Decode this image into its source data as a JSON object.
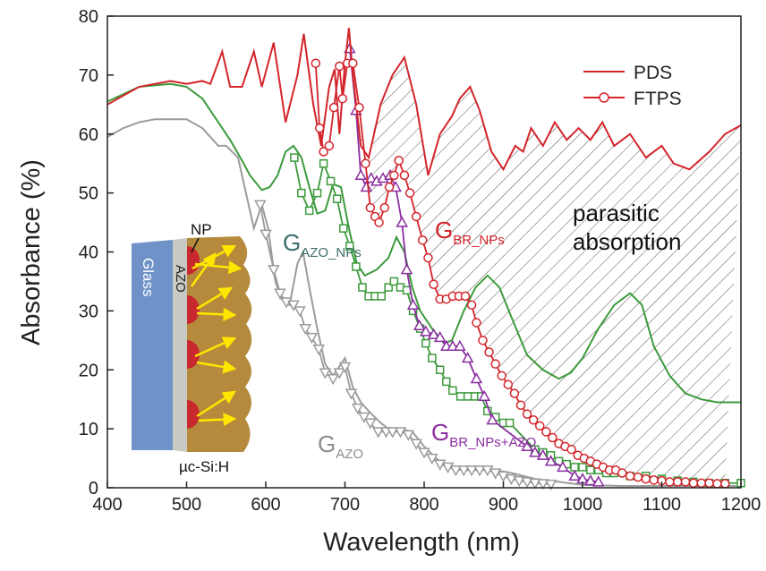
{
  "chart_data": {
    "type": "line",
    "xlabel": "Wavelength (nm)",
    "ylabel": "Absorbance (%)",
    "xlim": [
      400,
      1200
    ],
    "ylim": [
      0,
      80
    ],
    "xticks": [
      400,
      500,
      600,
      700,
      800,
      900,
      1000,
      1100,
      1200
    ],
    "yticks": [
      0,
      10,
      20,
      30,
      40,
      50,
      60,
      70,
      80
    ],
    "legend": {
      "position": "upper right",
      "color": "#d3242a",
      "entries": [
        {
          "name": "PDS",
          "style": "line"
        },
        {
          "name": "FTPS",
          "style": "circle"
        }
      ]
    },
    "annotation": [
      "parasitic",
      "absorption"
    ],
    "series": [
      {
        "label": {
          "text": "G",
          "sub": "AZO"
        },
        "color": "#9b9b9b",
        "label_color": "#8c8c8c",
        "pds": {
          "x": [
            400,
            420,
            440,
            460,
            480,
            500,
            520,
            540,
            550,
            565,
            575,
            585,
            595,
            603,
            612,
            620,
            630,
            640,
            647,
            655,
            665,
            675,
            685,
            695,
            700,
            710,
            720,
            730,
            745,
            760,
            775,
            785,
            800,
            815,
            830,
            850,
            870,
            890,
            910,
            940,
            970,
            1000,
            1050,
            1100,
            1200
          ],
          "values": [
            59.5,
            61,
            62,
            62.5,
            62.5,
            62.5,
            61,
            58,
            58,
            56,
            50,
            44,
            48,
            44,
            35,
            32,
            31,
            38,
            40,
            34,
            27,
            21,
            19,
            21,
            22,
            17,
            14.5,
            13,
            11,
            9.5,
            9.8,
            9.5,
            7,
            5,
            3.5,
            3,
            3,
            3,
            2.5,
            1.5,
            1,
            0.5,
            0.3,
            0.3,
            0.3
          ]
        },
        "ftps": {
          "marker": "triangle-down",
          "x": [
            593,
            600,
            610,
            618,
            626,
            635,
            643,
            650,
            658,
            667,
            675,
            685,
            693,
            700,
            708,
            716,
            724,
            732,
            742,
            752,
            760,
            770,
            780,
            790,
            800,
            810,
            820,
            830,
            840,
            850,
            860,
            870,
            880,
            890,
            900,
            910,
            920,
            930,
            940,
            950,
            960
          ],
          "values": [
            48,
            43,
            37,
            33,
            31.5,
            31,
            30,
            27,
            25.5,
            23.5,
            19.5,
            18.5,
            19.5,
            20.5,
            16,
            13.5,
            12,
            11,
            9.5,
            9.5,
            9.5,
            9.5,
            9,
            7.5,
            6,
            5,
            4,
            3.5,
            3,
            3,
            3,
            3,
            3,
            2.5,
            2,
            1.5,
            1.2,
            1,
            0.8,
            0.7,
            0.6
          ]
        }
      },
      {
        "label": {
          "text": "G",
          "sub": "AZO_NPs"
        },
        "color": "#3c9a3c",
        "label_color": "#3d6e6a",
        "pds": {
          "x": [
            400,
            440,
            480,
            500,
            520,
            540,
            555,
            570,
            580,
            595,
            605,
            615,
            625,
            635,
            645,
            655,
            665,
            675,
            685,
            695,
            705,
            715,
            725,
            740,
            755,
            765,
            775,
            785,
            795,
            810,
            825,
            835,
            850,
            865,
            880,
            895,
            910,
            930,
            950,
            970,
            985,
            1000,
            1020,
            1040,
            1060,
            1075,
            1090,
            1110,
            1130,
            1150,
            1170,
            1200
          ],
          "values": [
            65.5,
            68,
            68.5,
            68,
            66,
            62,
            59,
            55.5,
            53,
            50.5,
            51,
            53,
            57,
            58,
            56,
            51,
            46.5,
            47,
            51.5,
            51,
            44,
            38,
            36,
            37,
            39,
            42.5,
            40,
            34,
            30,
            27,
            24.5,
            25,
            30,
            34,
            36,
            34,
            29,
            22.5,
            20,
            18.5,
            19.5,
            22,
            27,
            31,
            33,
            31,
            24,
            19,
            16,
            15,
            14.5,
            14.5
          ]
        },
        "ftps": {
          "marker": "square",
          "x": [
            636,
            645,
            655,
            665,
            673,
            682,
            690,
            698,
            706,
            714,
            722,
            730,
            738,
            746,
            755,
            762,
            770,
            778,
            786,
            795,
            802,
            810,
            820,
            828,
            836,
            846,
            855,
            864,
            872,
            880,
            890,
            900,
            908,
            940,
            950,
            960,
            970,
            980,
            990,
            1000,
            1010,
            1020,
            1030,
            1040,
            1060,
            1080,
            1100,
            1120,
            1140,
            1160,
            1180,
            1200
          ],
          "values": [
            56,
            50,
            47,
            50,
            55,
            52,
            49,
            44,
            41,
            37.5,
            34,
            32.5,
            32.5,
            32.5,
            34,
            35,
            34,
            33.5,
            30,
            27,
            24.5,
            22,
            20,
            18,
            16.5,
            15.5,
            15.5,
            15.5,
            15.5,
            13,
            12,
            11,
            11,
            6.5,
            6,
            5.5,
            4.5,
            4,
            3.5,
            3.5,
            3,
            3,
            2.5,
            2.5,
            2,
            2,
            1.5,
            1.2,
            1,
            0.8,
            0.8,
            0.8
          ]
        }
      },
      {
        "label": {
          "text": "G",
          "sub": "BR_NPs+AZO"
        },
        "color": "#8a2ea0",
        "label_color": "#8a2ea0",
        "ftps": {
          "marker": "triangle-up",
          "x": [
            706,
            714,
            720,
            727,
            733,
            740,
            748,
            757,
            764,
            772,
            778,
            786,
            794,
            802,
            812,
            820,
            828,
            836,
            845,
            855,
            866,
            876,
            886,
            930,
            940,
            950,
            960,
            975,
            990,
            1000,
            1010,
            1020
          ],
          "values": [
            74.5,
            64,
            53,
            51,
            52.5,
            52,
            52.5,
            53,
            51,
            45,
            37,
            31,
            27.5,
            26.5,
            26,
            25.5,
            24,
            24,
            24,
            22,
            18.5,
            15.5,
            11.5,
            7,
            6,
            5.5,
            4.5,
            3.5,
            2,
            1.5,
            1.2,
            1
          ]
        }
      },
      {
        "label": {
          "text": "G",
          "sub": "BR_NPs"
        },
        "color": "#d3242a",
        "label_color": "#d3242a",
        "pds": {
          "x": [
            400,
            420,
            440,
            460,
            480,
            500,
            520,
            530,
            545,
            555,
            570,
            585,
            595,
            610,
            625,
            640,
            648,
            660,
            670,
            680,
            687,
            693,
            700,
            705,
            710,
            720,
            730,
            745,
            760,
            775,
            790,
            805,
            820,
            835,
            845,
            858,
            870,
            885,
            900,
            915,
            925,
            935,
            950,
            965,
            980,
            995,
            1010,
            1025,
            1040,
            1060,
            1080,
            1100,
            1115,
            1135,
            1160,
            1180,
            1200
          ],
          "values": [
            65,
            66.5,
            68,
            68.5,
            69,
            68.5,
            69,
            68.5,
            74,
            68,
            68,
            74,
            68,
            75.5,
            62,
            70,
            77,
            65,
            58,
            68,
            71,
            60,
            72,
            78,
            70,
            58,
            56,
            65,
            70,
            73,
            65,
            53,
            60,
            63,
            66,
            68,
            64,
            57,
            54,
            58,
            57,
            61,
            58,
            62,
            59,
            61,
            59,
            62,
            58,
            60,
            56,
            58,
            55,
            54,
            57,
            60,
            61.5
          ]
        },
        "ftps": {
          "marker": "circle",
          "x": [
            663,
            668,
            673,
            680,
            686,
            693,
            697,
            703,
            710,
            718,
            726,
            732,
            738,
            743,
            750,
            756,
            762,
            768,
            775,
            782,
            790,
            798,
            805,
            812,
            820,
            828,
            836,
            844,
            852,
            860,
            866,
            874,
            882,
            890,
            898,
            906,
            914,
            922,
            930,
            938,
            946,
            954,
            962,
            970,
            978,
            986,
            994,
            1002,
            1010,
            1018,
            1026,
            1034,
            1042,
            1050,
            1060,
            1070,
            1080,
            1090,
            1100,
            1110,
            1120,
            1130,
            1140,
            1150,
            1160,
            1170,
            1180
          ],
          "values": [
            72,
            61,
            57,
            58,
            64.5,
            71.5,
            66,
            72,
            72,
            64.5,
            55,
            47.5,
            46,
            45,
            47.5,
            51,
            53,
            55.5,
            53,
            50,
            46,
            42,
            39,
            34.5,
            32,
            32,
            32.5,
            32.5,
            32.5,
            31,
            28,
            25,
            23,
            21,
            19,
            17.5,
            16,
            14,
            12.5,
            11.5,
            10.5,
            9.5,
            8.5,
            7.5,
            7,
            6.5,
            5.5,
            5,
            4.5,
            4,
            3.5,
            3,
            3,
            2.5,
            2,
            1.8,
            1.5,
            1.3,
            1.2,
            1,
            1,
            1,
            0.8,
            0.8,
            0.8,
            0.7,
            0.7
          ]
        }
      }
    ]
  },
  "inset": {
    "glass": "Glass",
    "azo": "AZO",
    "np": "NP",
    "absorber": "µc-Si:H"
  }
}
